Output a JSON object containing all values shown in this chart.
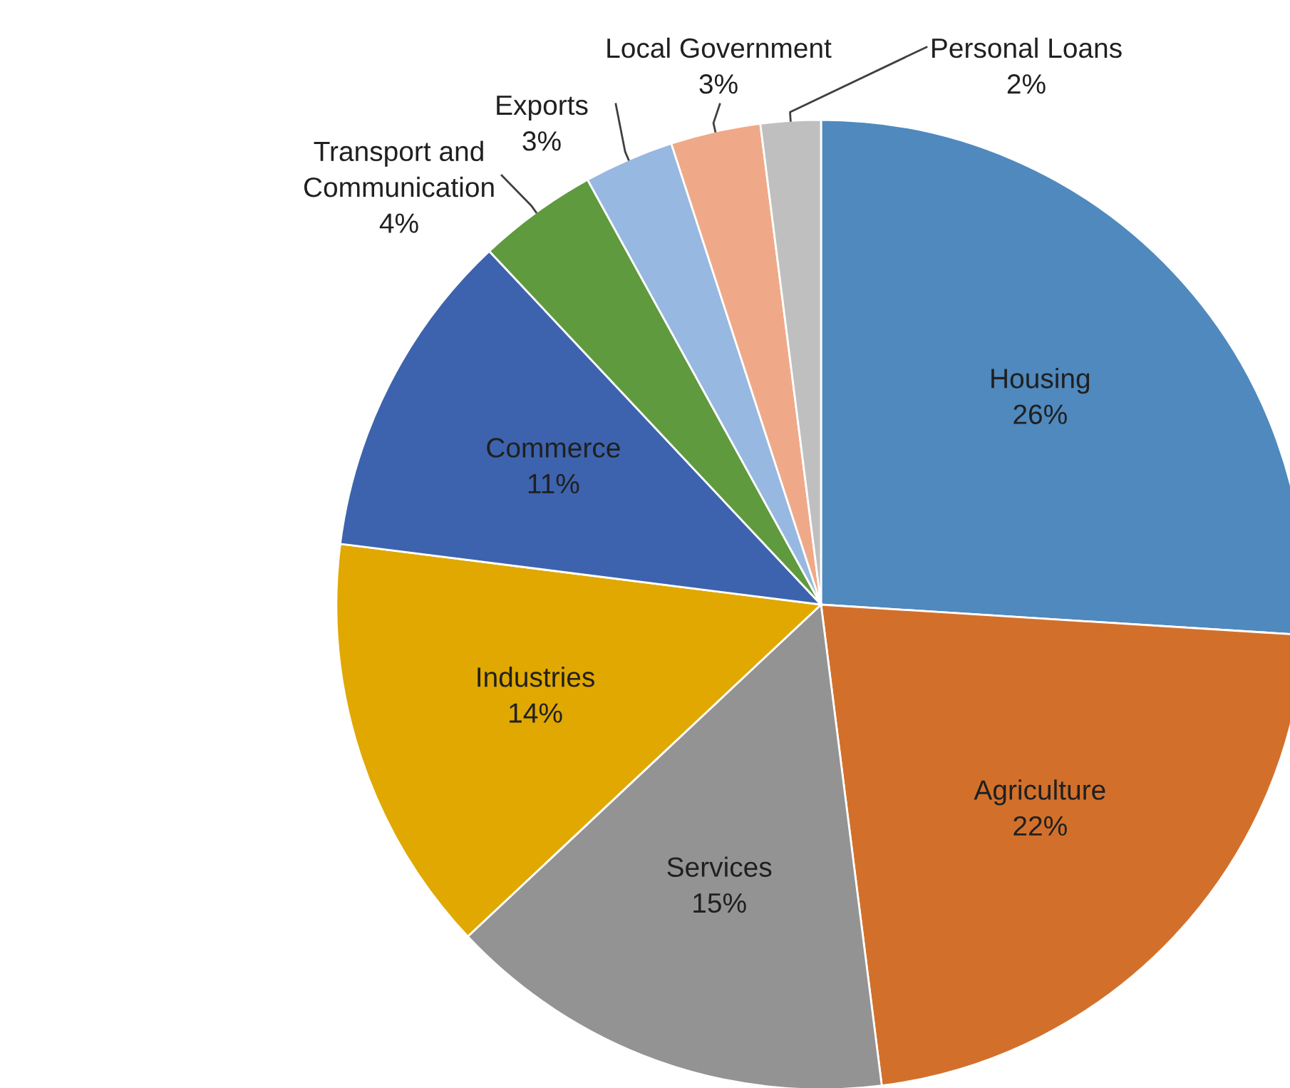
{
  "chart_data": {
    "type": "pie",
    "categories": [
      "Housing",
      "Agriculture",
      "Services",
      "Industries",
      "Commerce",
      "Transport and Communication",
      "Exports",
      "Local Government",
      "Personal Loans"
    ],
    "values": [
      26,
      22,
      15,
      14,
      11,
      4,
      3,
      3,
      2
    ],
    "colors": [
      "#4f89be",
      "#d2702b",
      "#939393",
      "#e0a800",
      "#3d63ae",
      "#5f9a3e",
      "#97b8e0",
      "#f0a988",
      "#bfbfbf"
    ],
    "value_labels": [
      "26%",
      "22%",
      "15%",
      "14%",
      "11%",
      "4%",
      "3%",
      "3%",
      "2%"
    ]
  }
}
